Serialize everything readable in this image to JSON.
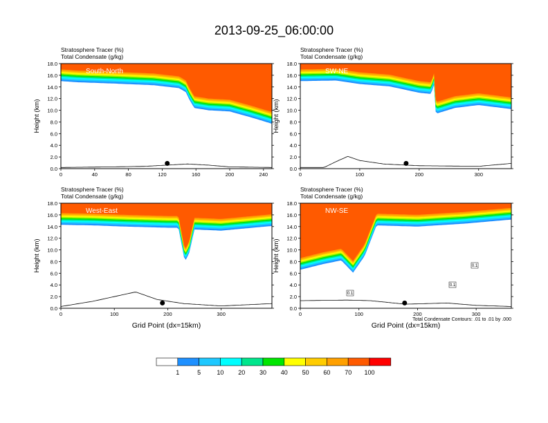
{
  "figure": {
    "title": "2013-09-25_06:00:00",
    "footnote": "Total Condensate Contours: .01 to .01 by .000",
    "colors": {
      "levels": [
        "#ffffff",
        "#1e90ff",
        "#1ec8ff",
        "#00ffff",
        "#00e68c",
        "#00e600",
        "#a0f000",
        "#ffff00",
        "#ffcc00",
        "#ffa000",
        "#ff5a00",
        "#ff0000"
      ]
    }
  },
  "colorbar": {
    "labels": [
      "1",
      "5",
      "10",
      "20",
      "30",
      "40",
      "50",
      "60",
      "70",
      "100"
    ]
  },
  "chart_data": [
    {
      "type": "heatmap",
      "panel_label": "South-North",
      "title_line1": "Stratosphere Tracer   (%)",
      "title_line2": "Total Condensate   (g/kg)",
      "xlabel": "",
      "ylabel": "Height (km)",
      "xlim": [
        0,
        250
      ],
      "ylim": [
        0,
        18
      ],
      "xticks": [
        "0",
        "40",
        "80",
        "120",
        "160",
        "200",
        "240"
      ],
      "xtick_values": [
        0,
        40,
        80,
        120,
        160,
        200,
        240
      ],
      "yticks": [
        "0.0",
        "2.0",
        "4.0",
        "6.0",
        "8.0",
        "10.0",
        "12.0",
        "14.0",
        "16.0",
        "18.0"
      ],
      "tracer_base_km": [
        [
          0,
          15.6
        ],
        [
          20,
          15.4
        ],
        [
          60,
          15.2
        ],
        [
          110,
          14.9
        ],
        [
          140,
          14.4
        ],
        [
          148,
          13.7
        ],
        [
          152,
          12.5
        ],
        [
          158,
          11.0
        ],
        [
          175,
          10.6
        ],
        [
          200,
          10.4
        ],
        [
          225,
          9.4
        ],
        [
          250,
          8.3
        ]
      ],
      "terrain_km": [
        [
          0,
          0.2
        ],
        [
          60,
          0.3
        ],
        [
          100,
          0.4
        ],
        [
          125,
          0.6
        ],
        [
          150,
          0.8
        ],
        [
          175,
          0.6
        ],
        [
          200,
          0.3
        ],
        [
          250,
          0.2
        ]
      ],
      "marker_x": 126
    },
    {
      "type": "heatmap",
      "panel_label": "SW-NE",
      "title_line1": "Stratosphere Tracer   (%)",
      "title_line2": "Total Condensate   (g/kg)",
      "xlabel": "",
      "ylabel": "Height (km)",
      "xlim": [
        0,
        355
      ],
      "ylim": [
        0,
        18
      ],
      "xticks": [
        "0",
        "100",
        "200",
        "300"
      ],
      "xtick_values": [
        0,
        100,
        200,
        300
      ],
      "yticks": [
        "0.0",
        "2.0",
        "4.0",
        "6.0",
        "8.0",
        "10.0",
        "12.0",
        "14.0",
        "16.0",
        "18.0"
      ],
      "tracer_base_km": [
        [
          0,
          15.6
        ],
        [
          60,
          15.7
        ],
        [
          100,
          15.1
        ],
        [
          150,
          14.7
        ],
        [
          200,
          13.6
        ],
        [
          220,
          13.4
        ],
        [
          225,
          15.0
        ],
        [
          228,
          10.0
        ],
        [
          260,
          11.0
        ],
        [
          300,
          11.5
        ],
        [
          355,
          10.8
        ]
      ],
      "terrain_km": [
        [
          0,
          0.2
        ],
        [
          40,
          0.2
        ],
        [
          60,
          1.2
        ],
        [
          80,
          2.1
        ],
        [
          100,
          1.4
        ],
        [
          140,
          0.8
        ],
        [
          200,
          0.5
        ],
        [
          300,
          0.4
        ],
        [
          355,
          0.9
        ]
      ],
      "marker_x": 178
    },
    {
      "type": "heatmap",
      "panel_label": "West-East",
      "title_line1": "Stratosphere Tracer   (%)",
      "title_line2": "Total Condensate   (g/kg)",
      "xlabel": "Grid Point (dx=15km)",
      "ylabel": "Height (km)",
      "xlim": [
        0,
        395
      ],
      "ylim": [
        0,
        18
      ],
      "xticks": [
        "0",
        "100",
        "200",
        "300"
      ],
      "xtick_values": [
        0,
        100,
        200,
        300
      ],
      "yticks": [
        "0.0",
        "2.0",
        "4.0",
        "6.0",
        "8.0",
        "10.0",
        "12.0",
        "14.0",
        "16.0",
        "18.0"
      ],
      "tracer_base_km": [
        [
          0,
          14.9
        ],
        [
          60,
          14.8
        ],
        [
          120,
          14.6
        ],
        [
          200,
          14.4
        ],
        [
          220,
          14.4
        ],
        [
          232,
          8.6
        ],
        [
          240,
          10.0
        ],
        [
          250,
          14.1
        ],
        [
          300,
          13.9
        ],
        [
          395,
          14.7
        ]
      ],
      "terrain_km": [
        [
          0,
          0.3
        ],
        [
          60,
          1.2
        ],
        [
          100,
          2.0
        ],
        [
          140,
          2.8
        ],
        [
          180,
          1.5
        ],
        [
          230,
          0.8
        ],
        [
          300,
          0.4
        ],
        [
          395,
          0.8
        ]
      ],
      "marker_x": 190
    },
    {
      "type": "heatmap",
      "panel_label": "NW-SE",
      "title_line1": "Stratosphere Tracer   (%)",
      "title_line2": "Total Condensate   (g/kg)",
      "xlabel": "Grid Point (dx=15km)",
      "ylabel": "Height (km)",
      "xlim": [
        0,
        360
      ],
      "ylim": [
        0,
        18
      ],
      "xticks": [
        "0",
        "100",
        "200",
        "300"
      ],
      "xtick_values": [
        0,
        100,
        200,
        300
      ],
      "yticks": [
        "0.0",
        "2.0",
        "4.0",
        "6.0",
        "8.0",
        "10.0",
        "12.0",
        "14.0",
        "16.0",
        "18.0"
      ],
      "tracer_base_km": [
        [
          0,
          7.2
        ],
        [
          40,
          8.2
        ],
        [
          70,
          8.8
        ],
        [
          90,
          6.7
        ],
        [
          110,
          9.6
        ],
        [
          130,
          14.8
        ],
        [
          200,
          14.6
        ],
        [
          280,
          15.1
        ],
        [
          360,
          15.8
        ]
      ],
      "terrain_km": [
        [
          0,
          1.3
        ],
        [
          80,
          1.4
        ],
        [
          120,
          1.3
        ],
        [
          180,
          0.7
        ],
        [
          250,
          0.9
        ],
        [
          300,
          0.5
        ],
        [
          360,
          0.3
        ]
      ],
      "marker_x": 178,
      "contour_labels": [
        "0.1",
        "0.1",
        "0.1"
      ]
    }
  ]
}
